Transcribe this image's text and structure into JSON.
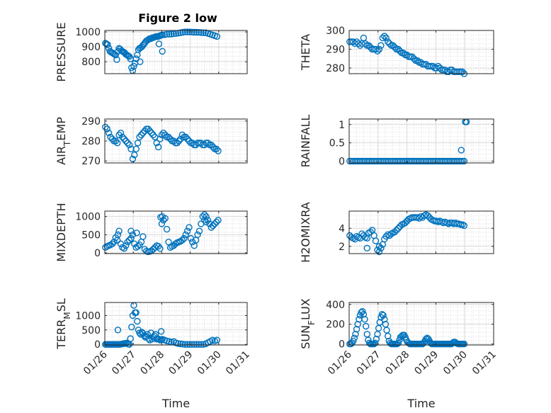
{
  "figure": {
    "title": "Figure 2 low",
    "series_color": "#0072BD"
  },
  "chart_data": [
    {
      "type": "scatter",
      "title": "Figure 2 low",
      "ylabel": "PRESSURE",
      "xlabel": "",
      "xlim": [
        0,
        5
      ],
      "ylim": [
        720,
        1010
      ],
      "yticks": [
        800,
        900,
        1000
      ],
      "xtick_labels": [],
      "grid": true,
      "x": [
        0.02,
        0.06,
        0.1,
        0.14,
        0.18,
        0.22,
        0.26,
        0.3,
        0.34,
        0.38,
        0.42,
        0.46,
        0.5,
        0.54,
        0.58,
        0.62,
        0.66,
        0.7,
        0.74,
        0.78,
        0.82,
        0.86,
        0.9,
        0.94,
        0.98,
        1.02,
        1.06,
        1.1,
        1.14,
        1.18,
        1.22,
        1.26,
        1.3,
        1.34,
        1.38,
        1.42,
        1.46,
        1.5,
        1.54,
        1.58,
        1.62,
        1.66,
        1.7,
        1.74,
        1.78,
        1.82,
        1.86,
        1.9,
        1.94,
        1.98,
        2.02,
        2.1,
        2.18,
        2.26,
        2.34,
        2.42,
        2.5,
        2.58,
        2.66,
        2.74,
        2.82,
        2.9,
        2.98,
        3.06,
        3.14,
        3.22,
        3.3,
        3.38,
        3.46,
        3.54,
        3.62,
        3.7,
        3.78,
        3.86,
        3.94,
        1.24,
        1.9,
        2.02
      ],
      "y": [
        925,
        920,
        915,
        890,
        870,
        865,
        860,
        855,
        850,
        845,
        815,
        870,
        890,
        885,
        875,
        870,
        865,
        860,
        850,
        845,
        840,
        835,
        820,
        760,
        740,
        770,
        790,
        820,
        845,
        880,
        890,
        895,
        900,
        910,
        920,
        930,
        940,
        945,
        950,
        955,
        955,
        960,
        962,
        965,
        968,
        970,
        968,
        972,
        975,
        978,
        980,
        982,
        985,
        985,
        986,
        988,
        990,
        992,
        995,
        998,
        1000,
        1000,
        1000,
        999,
        998,
        998,
        997,
        996,
        995,
        995,
        990,
        985,
        980,
        975,
        970,
        800,
        920,
        870
      ]
    },
    {
      "type": "scatter",
      "title": "",
      "ylabel": "THETA",
      "xlabel": "",
      "xlim": [
        0,
        5
      ],
      "ylim": [
        277,
        300
      ],
      "yticks": [
        280,
        290,
        300
      ],
      "xtick_labels": [],
      "grid": true,
      "x": [
        0.02,
        0.08,
        0.14,
        0.2,
        0.26,
        0.32,
        0.38,
        0.44,
        0.5,
        0.56,
        0.62,
        0.68,
        0.74,
        0.8,
        0.86,
        0.92,
        0.98,
        1.04,
        1.1,
        1.16,
        1.22,
        1.28,
        1.34,
        1.4,
        1.46,
        1.52,
        1.58,
        1.64,
        1.7,
        1.76,
        1.82,
        1.88,
        1.94,
        2.0,
        2.06,
        2.12,
        2.18,
        2.24,
        2.3,
        2.36,
        2.42,
        2.48,
        2.54,
        2.6,
        2.66,
        2.72,
        2.78,
        2.84,
        2.9,
        2.96,
        3.02,
        3.08,
        3.14,
        3.2,
        3.26,
        3.32,
        3.38,
        3.44,
        3.5,
        3.56,
        3.62,
        3.68,
        3.74,
        3.8,
        3.86,
        3.92,
        3.98
      ],
      "y": [
        294,
        294,
        294,
        293,
        294,
        293,
        292,
        293,
        296,
        293,
        292,
        292,
        291,
        290,
        290,
        290,
        289,
        290,
        292,
        296,
        297,
        296,
        294,
        293,
        292,
        292,
        291,
        290,
        290,
        289,
        288,
        288,
        287,
        287,
        286,
        286,
        286,
        285,
        284,
        284,
        283,
        283,
        282,
        282,
        282,
        281,
        281,
        281,
        281,
        280,
        280,
        281,
        280,
        279,
        279,
        279,
        278,
        278,
        279,
        279,
        278,
        278,
        278,
        278,
        278,
        278,
        277
      ]
    },
    {
      "type": "scatter",
      "title": "",
      "ylabel": "AIR_TEMP",
      "xlabel": "",
      "xlim": [
        0,
        5
      ],
      "ylim": [
        269,
        291
      ],
      "yticks": [
        270,
        280,
        290
      ],
      "xtick_labels": [],
      "grid": true,
      "x": [
        0.02,
        0.08,
        0.14,
        0.2,
        0.26,
        0.32,
        0.38,
        0.44,
        0.5,
        0.56,
        0.62,
        0.68,
        0.74,
        0.8,
        0.86,
        0.92,
        0.98,
        1.04,
        1.1,
        1.16,
        1.22,
        1.28,
        1.34,
        1.4,
        1.46,
        1.52,
        1.58,
        1.64,
        1.7,
        1.76,
        1.82,
        1.88,
        1.94,
        2.0,
        2.06,
        2.12,
        2.18,
        2.24,
        2.3,
        2.36,
        2.42,
        2.48,
        2.54,
        2.6,
        2.66,
        2.72,
        2.78,
        2.84,
        2.9,
        2.96,
        3.02,
        3.08,
        3.14,
        3.2,
        3.26,
        3.32,
        3.38,
        3.44,
        3.5,
        3.56,
        3.62,
        3.68,
        3.74,
        3.8,
        3.86,
        3.92,
        3.98
      ],
      "y": [
        287,
        286,
        284,
        282,
        281,
        280,
        280,
        279,
        283,
        284,
        282,
        281,
        280,
        279,
        278,
        276,
        271,
        273,
        276,
        279,
        282,
        283,
        284,
        285,
        286,
        286,
        285,
        284,
        283,
        282,
        279,
        277,
        281,
        283,
        284,
        283,
        282,
        282,
        281,
        280,
        280,
        279,
        279,
        280,
        281,
        283,
        282,
        282,
        281,
        280,
        279,
        279,
        278,
        278,
        279,
        279,
        279,
        278,
        278,
        279,
        279,
        278,
        278,
        277,
        276,
        276,
        275
      ]
    },
    {
      "type": "scatter",
      "title": "",
      "ylabel": "RAINFALL",
      "xlabel": "",
      "xlim": [
        0,
        5
      ],
      "ylim": [
        -0.05,
        1.15
      ],
      "yticks": [
        0,
        0.5,
        1
      ],
      "xtick_labels": [],
      "grid": true,
      "x": [
        0.02,
        0.08,
        0.14,
        0.2,
        0.26,
        0.32,
        0.38,
        0.44,
        0.5,
        0.56,
        0.62,
        0.68,
        0.74,
        0.8,
        0.86,
        0.92,
        0.98,
        1.04,
        1.1,
        1.16,
        1.22,
        1.28,
        1.34,
        1.4,
        1.46,
        1.52,
        1.58,
        1.64,
        1.7,
        1.76,
        1.82,
        1.88,
        1.94,
        2.0,
        2.06,
        2.12,
        2.18,
        2.24,
        2.3,
        2.36,
        2.42,
        2.48,
        2.54,
        2.6,
        2.66,
        2.72,
        2.78,
        2.84,
        2.9,
        2.96,
        3.02,
        3.08,
        3.14,
        3.2,
        3.26,
        3.32,
        3.38,
        3.44,
        3.5,
        3.56,
        3.62,
        3.68,
        3.74,
        3.8,
        3.86,
        3.92,
        3.98,
        3.88,
        4.02,
        4.06
      ],
      "y": [
        0,
        0,
        0,
        0,
        0,
        0,
        0,
        0,
        0,
        0,
        0,
        0,
        0,
        0,
        0,
        0,
        0,
        0,
        0,
        0,
        0,
        0,
        0,
        0,
        0,
        0,
        0,
        0,
        0,
        0,
        0,
        0,
        0,
        0,
        0,
        0,
        0,
        0,
        0,
        0,
        0,
        0,
        0,
        0,
        0,
        0,
        0,
        0,
        0,
        0,
        0,
        0,
        0,
        0,
        0,
        0,
        0,
        0,
        0,
        0,
        0,
        0,
        0,
        0,
        0,
        0,
        0,
        0.3,
        1.07,
        1.07
      ]
    },
    {
      "type": "scatter",
      "title": "",
      "ylabel": "MIXDEPTH",
      "xlabel": "",
      "xlim": [
        0,
        5
      ],
      "ylim": [
        -20,
        1150
      ],
      "yticks": [
        0,
        500,
        1000
      ],
      "xtick_labels": [],
      "grid": true,
      "x": [
        0.02,
        0.08,
        0.14,
        0.2,
        0.26,
        0.32,
        0.38,
        0.44,
        0.5,
        0.56,
        0.62,
        0.68,
        0.74,
        0.8,
        0.86,
        0.92,
        0.98,
        1.04,
        1.1,
        1.16,
        1.22,
        1.28,
        1.34,
        1.4,
        1.46,
        1.52,
        1.58,
        1.64,
        1.7,
        1.76,
        1.82,
        1.88,
        1.94,
        2.0,
        2.06,
        2.12,
        2.18,
        2.24,
        2.3,
        2.36,
        2.42,
        2.48,
        2.54,
        2.6,
        2.66,
        2.72,
        2.78,
        2.84,
        2.9,
        2.96,
        3.02,
        3.08,
        3.14,
        3.2,
        3.26,
        3.32,
        3.38,
        3.44,
        3.5,
        3.56,
        3.62,
        3.68,
        3.74,
        3.8,
        3.86,
        3.92,
        3.98,
        0.46,
        0.92,
        1.12,
        1.96,
        2.02,
        3.5,
        3.56
      ],
      "y": [
        150,
        180,
        200,
        220,
        250,
        300,
        420,
        350,
        600,
        250,
        150,
        120,
        200,
        300,
        350,
        400,
        500,
        250,
        150,
        180,
        220,
        300,
        450,
        100,
        50,
        30,
        40,
        60,
        100,
        150,
        200,
        180,
        120,
        800,
        900,
        950,
        650,
        300,
        150,
        180,
        200,
        250,
        280,
        300,
        320,
        350,
        400,
        500,
        600,
        700,
        400,
        300,
        200,
        350,
        500,
        600,
        800,
        1000,
        900,
        850,
        900,
        800,
        700,
        750,
        800,
        850,
        900,
        500,
        600,
        550,
        980,
        1000,
        1050,
        1000
      ]
    },
    {
      "type": "scatter",
      "title": "",
      "ylabel": "H2OMIXRA",
      "xlabel": "",
      "xlim": [
        0,
        5
      ],
      "ylim": [
        1.2,
        5.9
      ],
      "yticks": [
        2,
        4
      ],
      "xtick_labels": [],
      "grid": true,
      "x": [
        0.02,
        0.08,
        0.14,
        0.2,
        0.26,
        0.32,
        0.38,
        0.44,
        0.5,
        0.56,
        0.62,
        0.68,
        0.74,
        0.8,
        0.86,
        0.92,
        0.98,
        1.04,
        1.1,
        1.16,
        1.22,
        1.28,
        1.34,
        1.4,
        1.46,
        1.52,
        1.58,
        1.64,
        1.7,
        1.76,
        1.82,
        1.88,
        1.94,
        2.0,
        2.06,
        2.12,
        2.18,
        2.24,
        2.3,
        2.36,
        2.42,
        2.48,
        2.54,
        2.6,
        2.66,
        2.72,
        2.78,
        2.84,
        2.9,
        2.96,
        3.02,
        3.08,
        3.14,
        3.2,
        3.26,
        3.32,
        3.38,
        3.44,
        3.5,
        3.56,
        3.62,
        3.68,
        3.74,
        3.8,
        3.86,
        3.92,
        3.98,
        0.62,
        1.04
      ],
      "y": [
        3.2,
        3.0,
        2.9,
        2.8,
        3.1,
        3.0,
        2.9,
        3.4,
        3.2,
        3.0,
        2.9,
        3.5,
        3.6,
        3.8,
        3.2,
        2.6,
        1.6,
        1.4,
        1.8,
        2.2,
        2.8,
        3.1,
        3.3,
        3.2,
        3.4,
        3.5,
        3.6,
        3.8,
        4.0,
        4.2,
        4.4,
        4.5,
        4.6,
        4.8,
        5.0,
        5.1,
        5.2,
        5.2,
        5.2,
        5.2,
        5.1,
        5.3,
        5.2,
        5.4,
        5.5,
        5.4,
        5.2,
        5.0,
        4.9,
        4.8,
        4.8,
        4.7,
        4.8,
        4.7,
        4.6,
        4.7,
        4.6,
        4.5,
        4.6,
        4.6,
        4.5,
        4.6,
        4.5,
        4.5,
        4.4,
        4.4,
        4.3,
        1.8,
        2.0
      ]
    },
    {
      "type": "scatter",
      "title": "",
      "ylabel": "TERR_MSL",
      "xlabel": "Time",
      "xlim": [
        0,
        5
      ],
      "ylim": [
        -20,
        1450
      ],
      "yticks": [
        0,
        500,
        1000
      ],
      "xtick_labels": [
        "01/26",
        "01/27",
        "01/28",
        "01/29",
        "01/30",
        "01/31"
      ],
      "grid": true,
      "x": [
        0.02,
        0.06,
        0.1,
        0.14,
        0.18,
        0.22,
        0.26,
        0.3,
        0.34,
        0.38,
        0.42,
        0.46,
        0.5,
        0.54,
        0.58,
        0.62,
        0.66,
        0.7,
        0.74,
        0.78,
        0.82,
        0.86,
        0.9,
        0.94,
        0.98,
        1.02,
        1.06,
        1.1,
        1.14,
        1.18,
        1.22,
        1.26,
        1.3,
        1.34,
        1.38,
        1.42,
        1.46,
        1.5,
        1.54,
        1.58,
        1.62,
        1.66,
        1.7,
        1.74,
        1.78,
        1.82,
        1.86,
        1.9,
        1.94,
        1.98,
        2.02,
        2.1,
        2.18,
        2.26,
        2.34,
        2.42,
        2.5,
        2.58,
        2.66,
        2.74,
        2.82,
        2.9,
        2.98,
        3.06,
        3.14,
        3.22,
        3.3,
        3.38,
        3.46,
        3.54,
        3.62,
        3.7,
        3.78,
        3.86,
        3.94,
        0.46,
        1.98
      ],
      "y": [
        0,
        0,
        0,
        0,
        0,
        0,
        0,
        0,
        0,
        0,
        0,
        0,
        0,
        0,
        10,
        20,
        30,
        30,
        40,
        50,
        10,
        0,
        200,
        600,
        1000,
        1350,
        1100,
        1100,
        800,
        500,
        400,
        350,
        420,
        380,
        300,
        250,
        280,
        350,
        200,
        150,
        400,
        180,
        250,
        300,
        350,
        180,
        200,
        180,
        150,
        160,
        180,
        150,
        120,
        100,
        80,
        100,
        50,
        30,
        20,
        10,
        0,
        0,
        0,
        0,
        0,
        0,
        0,
        0,
        0,
        20,
        60,
        100,
        150,
        120,
        150,
        500,
        450
      ]
    },
    {
      "type": "scatter",
      "title": "",
      "ylabel": "SUN_FLUX",
      "xlabel": "Time",
      "xlim": [
        0,
        5
      ],
      "ylim": [
        -10,
        420
      ],
      "yticks": [
        0,
        200,
        400
      ],
      "xtick_labels": [
        "01/26",
        "01/27",
        "01/28",
        "01/29",
        "01/30",
        "01/31"
      ],
      "grid": true,
      "x": [
        0.02,
        0.06,
        0.1,
        0.14,
        0.18,
        0.22,
        0.26,
        0.3,
        0.34,
        0.38,
        0.42,
        0.46,
        0.5,
        0.54,
        0.58,
        0.62,
        0.66,
        0.7,
        0.74,
        0.78,
        0.82,
        0.86,
        0.9,
        0.94,
        0.98,
        1.02,
        1.06,
        1.1,
        1.14,
        1.18,
        1.22,
        1.26,
        1.3,
        1.34,
        1.38,
        1.42,
        1.46,
        1.5,
        1.54,
        1.58,
        1.62,
        1.66,
        1.7,
        1.74,
        1.78,
        1.82,
        1.86,
        1.9,
        1.94,
        1.98,
        2.02,
        2.06,
        2.1,
        2.14,
        2.18,
        2.22,
        2.26,
        2.3,
        2.34,
        2.38,
        2.42,
        2.46,
        2.5,
        2.54,
        2.58,
        2.62,
        2.66,
        2.7,
        2.74,
        2.78,
        2.82,
        2.86,
        2.9,
        2.94,
        2.98,
        3.02,
        3.06,
        3.1,
        3.14,
        3.18,
        3.22,
        3.26,
        3.3,
        3.34,
        3.38,
        3.42,
        3.46,
        3.5,
        3.54,
        3.58,
        3.62,
        3.66,
        3.7,
        3.74,
        3.78,
        3.82,
        3.86,
        3.9,
        3.94,
        3.98
      ],
      "y": [
        0,
        0,
        10,
        30,
        60,
        100,
        150,
        200,
        250,
        290,
        320,
        330,
        300,
        250,
        180,
        100,
        40,
        10,
        0,
        0,
        0,
        0,
        10,
        50,
        100,
        160,
        220,
        270,
        300,
        290,
        250,
        200,
        140,
        80,
        30,
        10,
        0,
        0,
        0,
        0,
        0,
        0,
        10,
        40,
        70,
        80,
        90,
        90,
        70,
        40,
        20,
        10,
        0,
        0,
        0,
        0,
        0,
        0,
        0,
        0,
        0,
        0,
        0,
        0,
        10,
        30,
        50,
        60,
        50,
        30,
        10,
        0,
        0,
        0,
        0,
        0,
        0,
        0,
        0,
        0,
        0,
        0,
        0,
        0,
        0,
        0,
        0,
        0,
        0,
        10,
        20,
        20,
        10,
        5,
        0,
        0,
        0,
        0,
        0,
        0
      ]
    }
  ]
}
